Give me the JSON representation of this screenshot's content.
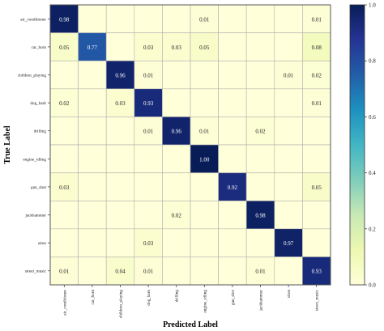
{
  "chart_data": {
    "type": "heatmap",
    "xlabel": "Predicted Label",
    "ylabel": "True Label",
    "categories": [
      "air_conditioner",
      "car_horn",
      "children_playing",
      "dog_bark",
      "drilling",
      "engine_idling",
      "gun_shot",
      "jackhammer",
      "siren",
      "street_music"
    ],
    "values": [
      [
        0.98,
        null,
        null,
        null,
        null,
        0.01,
        null,
        null,
        null,
        0.01
      ],
      [
        0.05,
        0.77,
        null,
        0.03,
        0.03,
        0.05,
        null,
        null,
        null,
        0.08
      ],
      [
        null,
        null,
        0.96,
        0.01,
        null,
        null,
        null,
        null,
        0.01,
        0.02
      ],
      [
        0.02,
        null,
        0.03,
        0.93,
        null,
        null,
        null,
        null,
        null,
        0.01
      ],
      [
        null,
        null,
        null,
        0.01,
        0.96,
        0.01,
        null,
        0.02,
        null,
        null
      ],
      [
        null,
        null,
        null,
        null,
        null,
        1.0,
        null,
        null,
        null,
        null
      ],
      [
        0.03,
        null,
        null,
        null,
        null,
        null,
        0.92,
        null,
        null,
        0.05
      ],
      [
        null,
        null,
        null,
        null,
        0.02,
        null,
        null,
        0.98,
        null,
        null
      ],
      [
        null,
        null,
        null,
        0.03,
        null,
        null,
        null,
        null,
        0.97,
        null
      ],
      [
        0.01,
        null,
        0.04,
        0.01,
        null,
        null,
        null,
        0.01,
        null,
        0.93
      ]
    ],
    "value_labels": [
      [
        "0.98",
        "",
        "",
        "",
        "",
        "0.01",
        "",
        "",
        "",
        "0.01"
      ],
      [
        "0.05",
        "0.77",
        "",
        "0.03",
        "0.03",
        "0.05",
        "",
        "",
        "",
        "0.08"
      ],
      [
        "",
        "",
        "0.96",
        "0.01",
        "",
        "",
        "",
        "",
        "0.01",
        "0.02"
      ],
      [
        "0.02",
        "",
        "0.03",
        "0.93",
        "",
        "",
        "",
        "",
        "",
        "0.01"
      ],
      [
        "",
        "",
        "",
        "0.01",
        "0.96",
        "0.01",
        "",
        "0.02",
        "",
        ""
      ],
      [
        "",
        "",
        "",
        "",
        "",
        "1.00",
        "",
        "",
        "",
        ""
      ],
      [
        "0.03",
        "",
        "",
        "",
        "",
        "",
        "0.92",
        "",
        "",
        "0.05"
      ],
      [
        "",
        "",
        "",
        "",
        "0.02",
        "",
        "",
        "0.98",
        "",
        ""
      ],
      [
        "",
        "",
        "",
        "0.03",
        "",
        "",
        "",
        "",
        "0.97",
        ""
      ],
      [
        "0.01",
        "",
        "0.04",
        "0.01",
        "",
        "",
        "",
        "0.01",
        "",
        "0.93"
      ]
    ],
    "colorbar": {
      "min": 0.0,
      "max": 1.0,
      "ticks": [
        0.0,
        0.2,
        0.4,
        0.6,
        0.8,
        1.0
      ],
      "tick_labels": [
        "0.0",
        "0.2",
        "0.4",
        "0.6",
        "0.8",
        "1.0"
      ],
      "colormap": "YlGnBu",
      "stops": [
        "#ffffd9",
        "#edf8b1",
        "#c7e9b4",
        "#7fcdbb",
        "#41b6c4",
        "#1d91c0",
        "#225ea8",
        "#253494",
        "#081d58"
      ]
    },
    "grid": true
  }
}
